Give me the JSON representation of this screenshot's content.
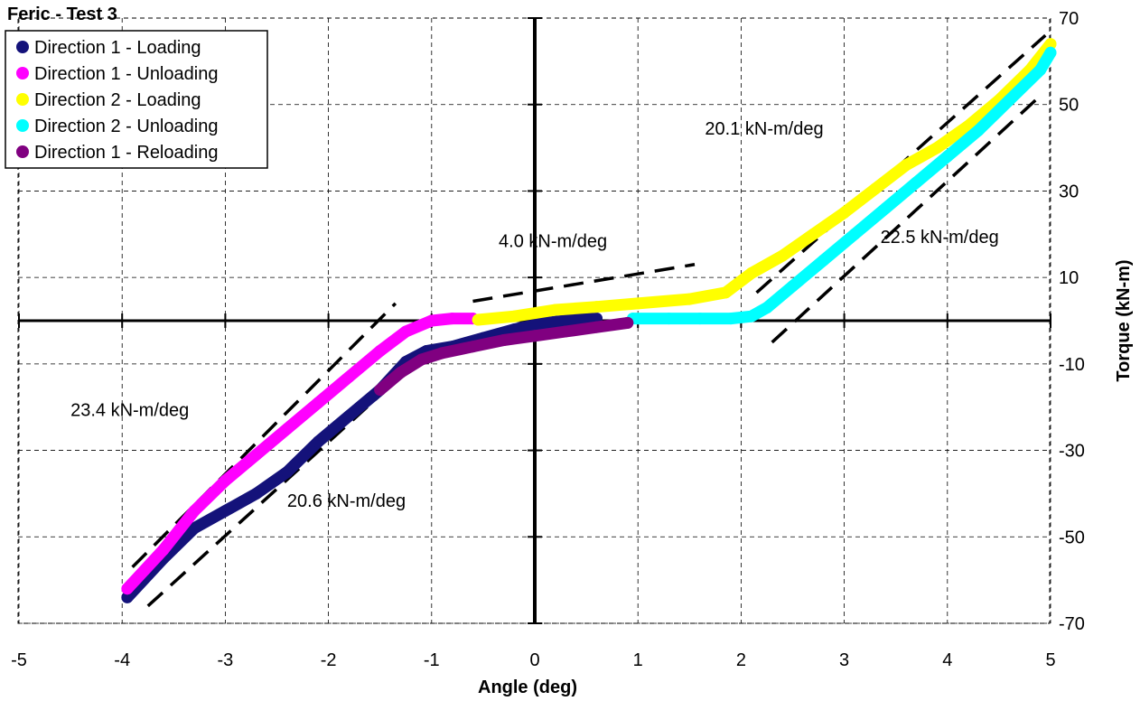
{
  "chart_data": {
    "type": "scatter",
    "title": "Feric - Test 3",
    "xlabel": "Angle (deg)",
    "ylabel": "Torque (kN-m)",
    "xlim": [
      -5,
      5
    ],
    "ylim": [
      -70,
      70
    ],
    "x_ticks": [
      -5,
      -4,
      -3,
      -2,
      -1,
      0,
      1,
      2,
      3,
      4,
      5
    ],
    "y_ticks": [
      -70,
      -50,
      -30,
      -10,
      10,
      30,
      50,
      70
    ],
    "grid": true,
    "legend_position": "top-left",
    "series": [
      {
        "name": "Direction 1 - Loading",
        "color": "#14127a",
        "points": [
          [
            -3.95,
            -64
          ],
          [
            -3.6,
            -55
          ],
          [
            -3.3,
            -48
          ],
          [
            -3.0,
            -44
          ],
          [
            -2.7,
            -40
          ],
          [
            -2.4,
            -35
          ],
          [
            -2.1,
            -28
          ],
          [
            -1.8,
            -22
          ],
          [
            -1.5,
            -16
          ],
          [
            -1.25,
            -9.5
          ],
          [
            -1.05,
            -7
          ],
          [
            -0.8,
            -6
          ],
          [
            -0.5,
            -4
          ],
          [
            -0.2,
            -2
          ],
          [
            0.1,
            -0.5
          ],
          [
            0.4,
            0.3
          ],
          [
            0.6,
            0.5
          ]
        ]
      },
      {
        "name": "Direction 1 - Unloading",
        "color": "#ff00ff",
        "points": [
          [
            -3.95,
            -62
          ],
          [
            -3.6,
            -53
          ],
          [
            -3.3,
            -44
          ],
          [
            -3.0,
            -37
          ],
          [
            -2.7,
            -31
          ],
          [
            -2.4,
            -25
          ],
          [
            -2.1,
            -19
          ],
          [
            -1.8,
            -13
          ],
          [
            -1.5,
            -7
          ],
          [
            -1.25,
            -2.5
          ],
          [
            -1.0,
            0
          ],
          [
            -0.8,
            0.5
          ],
          [
            -0.6,
            0.5
          ]
        ]
      },
      {
        "name": "Direction 2 - Loading",
        "color": "#ffff00",
        "points": [
          [
            -0.55,
            0.2
          ],
          [
            -0.2,
            1
          ],
          [
            0.2,
            2.5
          ],
          [
            0.6,
            3.2
          ],
          [
            1.0,
            4
          ],
          [
            1.5,
            5
          ],
          [
            1.85,
            6.5
          ],
          [
            2.1,
            11
          ],
          [
            2.4,
            15
          ],
          [
            2.7,
            20
          ],
          [
            3.0,
            25
          ],
          [
            3.3,
            30.5
          ],
          [
            3.6,
            36
          ],
          [
            3.9,
            40
          ],
          [
            4.2,
            45
          ],
          [
            4.5,
            51
          ],
          [
            4.8,
            58
          ],
          [
            5.0,
            64
          ]
        ]
      },
      {
        "name": "Direction 2 - Unloading",
        "color": "#00ffff",
        "points": [
          [
            0.95,
            0.5
          ],
          [
            1.3,
            0.5
          ],
          [
            1.6,
            0.5
          ],
          [
            1.9,
            0.5
          ],
          [
            2.1,
            1
          ],
          [
            2.25,
            3
          ],
          [
            2.5,
            8
          ],
          [
            2.8,
            14
          ],
          [
            3.1,
            20
          ],
          [
            3.4,
            26
          ],
          [
            3.7,
            32
          ],
          [
            4.0,
            38
          ],
          [
            4.3,
            44
          ],
          [
            4.6,
            51
          ],
          [
            4.9,
            58
          ],
          [
            5.0,
            62
          ]
        ]
      },
      {
        "name": "Direction 1 - Reloading",
        "color": "#800080",
        "points": [
          [
            -1.5,
            -16
          ],
          [
            -1.3,
            -12
          ],
          [
            -1.1,
            -9
          ],
          [
            -0.9,
            -7.5
          ],
          [
            -0.6,
            -6
          ],
          [
            -0.3,
            -4.5
          ],
          [
            0.0,
            -3.5
          ],
          [
            0.3,
            -2.5
          ],
          [
            0.6,
            -1.5
          ],
          [
            0.9,
            -0.5
          ]
        ]
      }
    ],
    "reference_lines": [
      {
        "from": [
          -3.9,
          -57
        ],
        "to": [
          -1.35,
          4
        ]
      },
      {
        "from": [
          -3.75,
          -66
        ],
        "to": [
          -1.05,
          -7.5
        ]
      },
      {
        "from": [
          -0.6,
          4.5
        ],
        "to": [
          1.55,
          13
        ]
      },
      {
        "from": [
          2.15,
          6.5
        ],
        "to": [
          4.95,
          66
        ]
      },
      {
        "from": [
          2.3,
          -5
        ],
        "to": [
          4.9,
          52
        ]
      }
    ],
    "annotations": [
      {
        "text": "4.0 kN-m/deg",
        "x": -0.35,
        "y": 17
      },
      {
        "text": "20.1 kN-m/deg",
        "x": 1.65,
        "y": 43
      },
      {
        "text": "22.5 kN-m/deg",
        "x": 3.35,
        "y": 18
      },
      {
        "text": "23.4 kN-m/deg",
        "x": -4.5,
        "y": -22
      },
      {
        "text": "20.6 kN-m/deg",
        "x": -2.4,
        "y": -43
      }
    ]
  }
}
